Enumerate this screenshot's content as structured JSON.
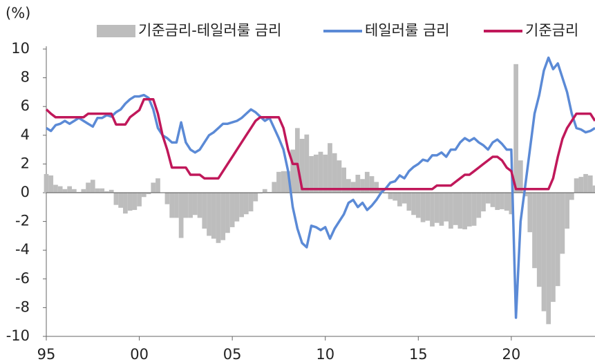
{
  "chart_data": {
    "type": "combo",
    "y_unit_label": "(%)",
    "x": [
      1995,
      1995.25,
      1995.5,
      1995.75,
      1996,
      1996.25,
      1996.5,
      1996.75,
      1997,
      1997.25,
      1997.5,
      1997.75,
      1998,
      1998.25,
      1998.5,
      1998.75,
      1999,
      1999.25,
      1999.5,
      1999.75,
      2000,
      2000.25,
      2000.5,
      2000.75,
      2001,
      2001.25,
      2001.5,
      2001.75,
      2002,
      2002.25,
      2002.5,
      2002.75,
      2003,
      2003.25,
      2003.5,
      2003.75,
      2004,
      2004.25,
      2004.5,
      2004.75,
      2005,
      2005.25,
      2005.5,
      2005.75,
      2006,
      2006.25,
      2006.5,
      2006.75,
      2007,
      2007.25,
      2007.5,
      2007.75,
      2008,
      2008.25,
      2008.5,
      2008.75,
      2009,
      2009.25,
      2009.5,
      2009.75,
      2010,
      2010.25,
      2010.5,
      2010.75,
      2011,
      2011.25,
      2011.5,
      2011.75,
      2012,
      2012.25,
      2012.5,
      2012.75,
      2013,
      2013.25,
      2013.5,
      2013.75,
      2014,
      2014.25,
      2014.5,
      2014.75,
      2015,
      2015.25,
      2015.5,
      2015.75,
      2016,
      2016.25,
      2016.5,
      2016.75,
      2017,
      2017.25,
      2017.5,
      2017.75,
      2018,
      2018.25,
      2018.5,
      2018.75,
      2019,
      2019.25,
      2019.5,
      2019.75,
      2020,
      2020.25,
      2020.5,
      2020.75,
      2021,
      2021.25,
      2021.5,
      2021.75,
      2022,
      2022.25,
      2022.5,
      2022.75,
      2023,
      2023.25,
      2023.5,
      2023.75,
      2024,
      2024.25,
      2024.5
    ],
    "series": [
      {
        "name": "기준금리-테일러룰 금리",
        "type": "bar",
        "color": "#bdbdbd",
        "values": [
          1.3,
          1.2,
          0.55,
          0.45,
          0.25,
          0.45,
          0.25,
          0.05,
          0.25,
          0.7,
          0.9,
          0.3,
          0.3,
          0.1,
          0.2,
          -0.85,
          -1.05,
          -1.45,
          -1.25,
          -1.2,
          -0.95,
          -0.3,
          -0.1,
          0.7,
          1.0,
          0.0,
          -0.8,
          -1.75,
          -1.75,
          -3.15,
          -1.75,
          -1.75,
          -1.55,
          -1.75,
          -2.5,
          -3.0,
          -3.2,
          -3.5,
          -3.3,
          -2.8,
          -2.4,
          -2.0,
          -1.7,
          -1.5,
          -1.3,
          -0.6,
          -0.05,
          0.25,
          0.05,
          0.75,
          1.45,
          1.5,
          1.5,
          3.0,
          4.5,
          3.75,
          4.05,
          2.55,
          2.65,
          2.85,
          2.65,
          3.45,
          2.75,
          2.25,
          1.75,
          0.95,
          0.75,
          1.25,
          0.95,
          1.45,
          1.15,
          0.75,
          0.25,
          -0.05,
          -0.45,
          -0.55,
          -0.95,
          -0.75,
          -1.25,
          -1.55,
          -1.75,
          -2.05,
          -1.95,
          -2.35,
          -2.1,
          -2.3,
          -2.0,
          -2.5,
          -2.25,
          -2.5,
          -2.55,
          -2.35,
          -2.3,
          -1.75,
          -1.3,
          -0.75,
          -1.0,
          -1.2,
          -1.15,
          -1.25,
          -1.5,
          8.95,
          2.25,
          -0.25,
          -2.75,
          -5.25,
          -6.55,
          -8.25,
          -9.15,
          -7.6,
          -6.5,
          -4.25,
          -2.5,
          -0.5,
          1.0,
          1.1,
          1.3,
          1.2,
          0.5
        ]
      },
      {
        "name": "테일러룰 금리",
        "type": "line",
        "color": "#5b8ad6",
        "values": [
          4.5,
          4.3,
          4.7,
          4.8,
          5.0,
          4.8,
          5.0,
          5.2,
          5.0,
          4.8,
          4.6,
          5.2,
          5.2,
          5.4,
          5.3,
          5.6,
          5.8,
          6.2,
          6.5,
          6.7,
          6.7,
          6.8,
          6.6,
          5.8,
          4.5,
          4.0,
          3.8,
          3.5,
          3.5,
          4.9,
          3.5,
          3.0,
          2.8,
          3.0,
          3.5,
          4.0,
          4.2,
          4.5,
          4.8,
          4.8,
          4.9,
          5.0,
          5.2,
          5.5,
          5.8,
          5.6,
          5.3,
          5.0,
          5.2,
          4.5,
          3.8,
          3.0,
          1.5,
          -1.0,
          -2.5,
          -3.5,
          -3.8,
          -2.3,
          -2.4,
          -2.6,
          -2.4,
          -3.2,
          -2.5,
          -2.0,
          -1.5,
          -0.7,
          -0.5,
          -1.0,
          -0.7,
          -1.2,
          -0.9,
          -0.5,
          0.0,
          0.3,
          0.7,
          0.8,
          1.2,
          1.0,
          1.5,
          1.8,
          2.0,
          2.3,
          2.2,
          2.6,
          2.6,
          2.8,
          2.5,
          3.0,
          3.0,
          3.5,
          3.8,
          3.6,
          3.8,
          3.5,
          3.3,
          3.0,
          3.5,
          3.7,
          3.4,
          3.0,
          3.0,
          -8.7,
          -2.0,
          0.5,
          3.0,
          5.5,
          6.8,
          8.5,
          9.4,
          8.6,
          9.0,
          8.0,
          7.0,
          5.5,
          4.5,
          4.4,
          4.2,
          4.3,
          4.5
        ]
      },
      {
        "name": "기준금리",
        "type": "line",
        "color": "#c0185a",
        "values": [
          5.8,
          5.5,
          5.25,
          5.25,
          5.25,
          5.25,
          5.25,
          5.25,
          5.25,
          5.5,
          5.5,
          5.5,
          5.5,
          5.5,
          5.5,
          4.75,
          4.75,
          4.75,
          5.25,
          5.5,
          5.75,
          6.5,
          6.5,
          6.5,
          5.5,
          4.0,
          3.0,
          1.75,
          1.75,
          1.75,
          1.75,
          1.25,
          1.25,
          1.25,
          1.0,
          1.0,
          1.0,
          1.0,
          1.5,
          2.0,
          2.5,
          3.0,
          3.5,
          4.0,
          4.5,
          5.0,
          5.25,
          5.25,
          5.25,
          5.25,
          5.25,
          4.5,
          3.0,
          2.0,
          2.0,
          0.25,
          0.25,
          0.25,
          0.25,
          0.25,
          0.25,
          0.25,
          0.25,
          0.25,
          0.25,
          0.25,
          0.25,
          0.25,
          0.25,
          0.25,
          0.25,
          0.25,
          0.25,
          0.25,
          0.25,
          0.25,
          0.25,
          0.25,
          0.25,
          0.25,
          0.25,
          0.25,
          0.25,
          0.25,
          0.5,
          0.5,
          0.5,
          0.5,
          0.75,
          1.0,
          1.25,
          1.25,
          1.5,
          1.75,
          2.0,
          2.25,
          2.5,
          2.5,
          2.25,
          1.75,
          1.5,
          0.25,
          0.25,
          0.25,
          0.25,
          0.25,
          0.25,
          0.25,
          0.25,
          1.0,
          2.5,
          3.75,
          4.5,
          5.0,
          5.5,
          5.5,
          5.5,
          5.5,
          5.0
        ]
      }
    ],
    "xlim": [
      1995,
      2024.5
    ],
    "xticks": [
      {
        "value": 1995,
        "label": "95"
      },
      {
        "value": 2000,
        "label": "00"
      },
      {
        "value": 2005,
        "label": "05"
      },
      {
        "value": 2010,
        "label": "10"
      },
      {
        "value": 2015,
        "label": "15"
      },
      {
        "value": 2020,
        "label": "20"
      }
    ],
    "ylim": [
      -10,
      10
    ],
    "yticks": [
      10,
      8,
      6,
      4,
      2,
      0,
      -2,
      -4,
      -6,
      -8,
      -10
    ],
    "grid": false
  }
}
